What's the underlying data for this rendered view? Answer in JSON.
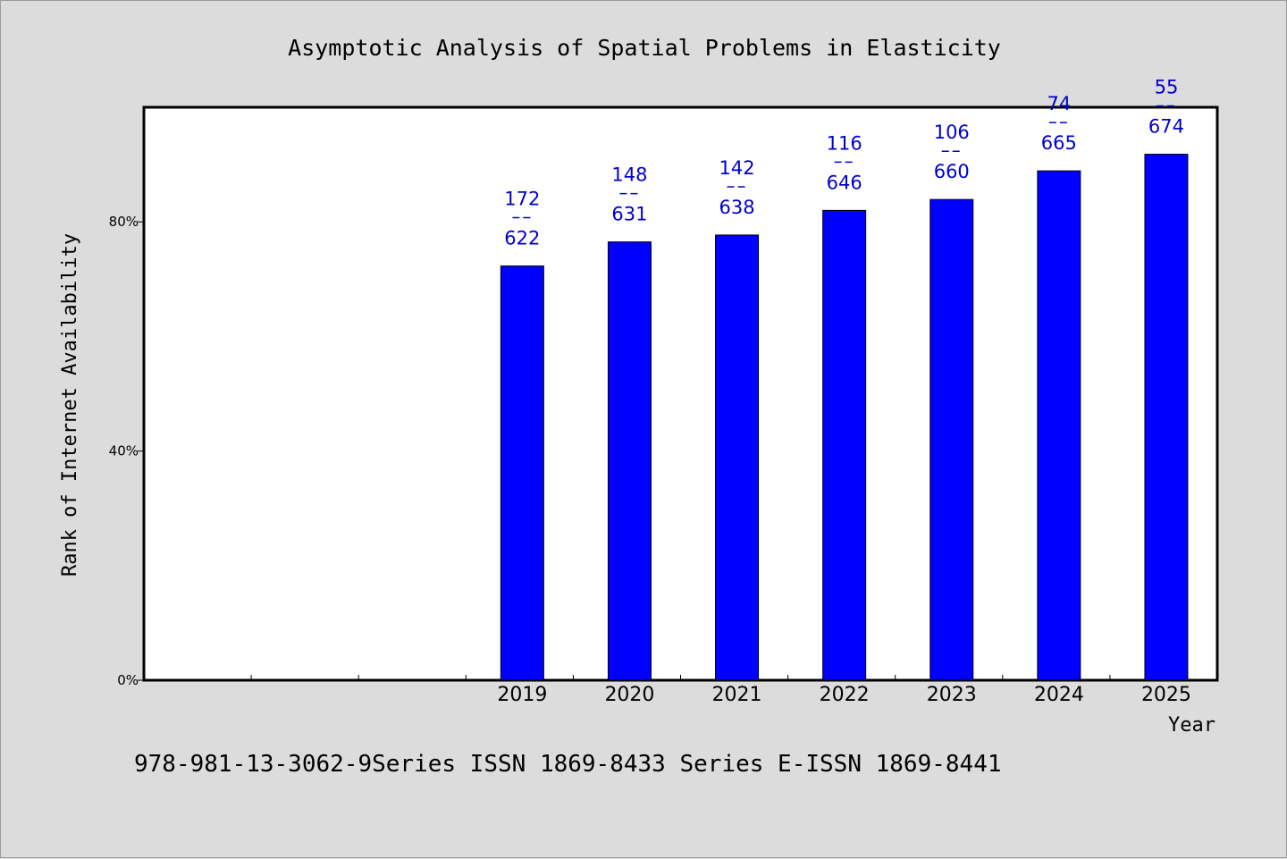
{
  "chart_data": {
    "type": "bar",
    "title": "Asymptotic Analysis of Spatial Problems in Elasticity",
    "xlabel": "Year",
    "ylabel": "Rank of Internet Availability",
    "categories": [
      "",
      "",
      "",
      "2019",
      "2020",
      "2021",
      "2022",
      "2023",
      "2024",
      "2025"
    ],
    "values": [
      null,
      null,
      null,
      72.3,
      76.5,
      77.7,
      82.0,
      83.9,
      88.9,
      91.8
    ],
    "data_labels": [
      null,
      null,
      null,
      {
        "top": "172",
        "bottom": "622"
      },
      {
        "top": "148",
        "bottom": "631"
      },
      {
        "top": "142",
        "bottom": "638"
      },
      {
        "top": "116",
        "bottom": "646"
      },
      {
        "top": "106",
        "bottom": "660"
      },
      {
        "top": "74",
        "bottom": "665"
      },
      {
        "top": "55",
        "bottom": "674"
      }
    ],
    "y_ticks": [
      {
        "value": 0,
        "label": "0%"
      },
      {
        "value": 40,
        "label": "40%"
      },
      {
        "value": 80,
        "label": "80%"
      }
    ],
    "ylim": [
      0,
      100
    ],
    "grid": false,
    "legend": "none",
    "bar_color": "#0000ff",
    "label_color": "#0000cc"
  },
  "footnote": "978-981-13-3062-9Series ISSN 1869-8433 Series E-ISSN 1869-8441"
}
